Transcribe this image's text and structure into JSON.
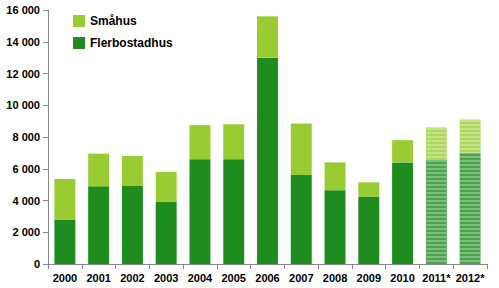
{
  "chart_data": {
    "type": "bar",
    "stacked": true,
    "legend": "upper left",
    "grid": false,
    "categories": [
      "2000",
      "2001",
      "2002",
      "2003",
      "2004",
      "2005",
      "2006",
      "2007",
      "2008",
      "2009",
      "2010",
      "2011*",
      "2012*"
    ],
    "series": [
      {
        "name": "Flerbostadhus",
        "color": "#1e8c1e",
        "values": [
          2800,
          4900,
          4950,
          3900,
          6600,
          6600,
          13000,
          5600,
          4650,
          4250,
          6400,
          6550,
          7000
        ]
      },
      {
        "name": "Småhus",
        "color": "#99cc33",
        "values": [
          2550,
          2050,
          1850,
          1900,
          2150,
          2200,
          2600,
          3250,
          1750,
          900,
          1400,
          2050,
          2100
        ]
      }
    ],
    "ylim": [
      0,
      16000
    ],
    "yticks": [
      0,
      {
        "value": 2000,
        "label": "2 000"
      },
      {
        "value": 4000,
        "label": "4 000"
      },
      {
        "value": 6000,
        "label": "6 000"
      },
      {
        "value": 8000,
        "label": "8 000"
      },
      {
        "value": 10000,
        "label": "10 000"
      },
      {
        "value": 12000,
        "label": "12 000"
      },
      {
        "value": 14000,
        "label": "14 000"
      },
      {
        "value": 16000,
        "label": "16 000"
      }
    ]
  }
}
